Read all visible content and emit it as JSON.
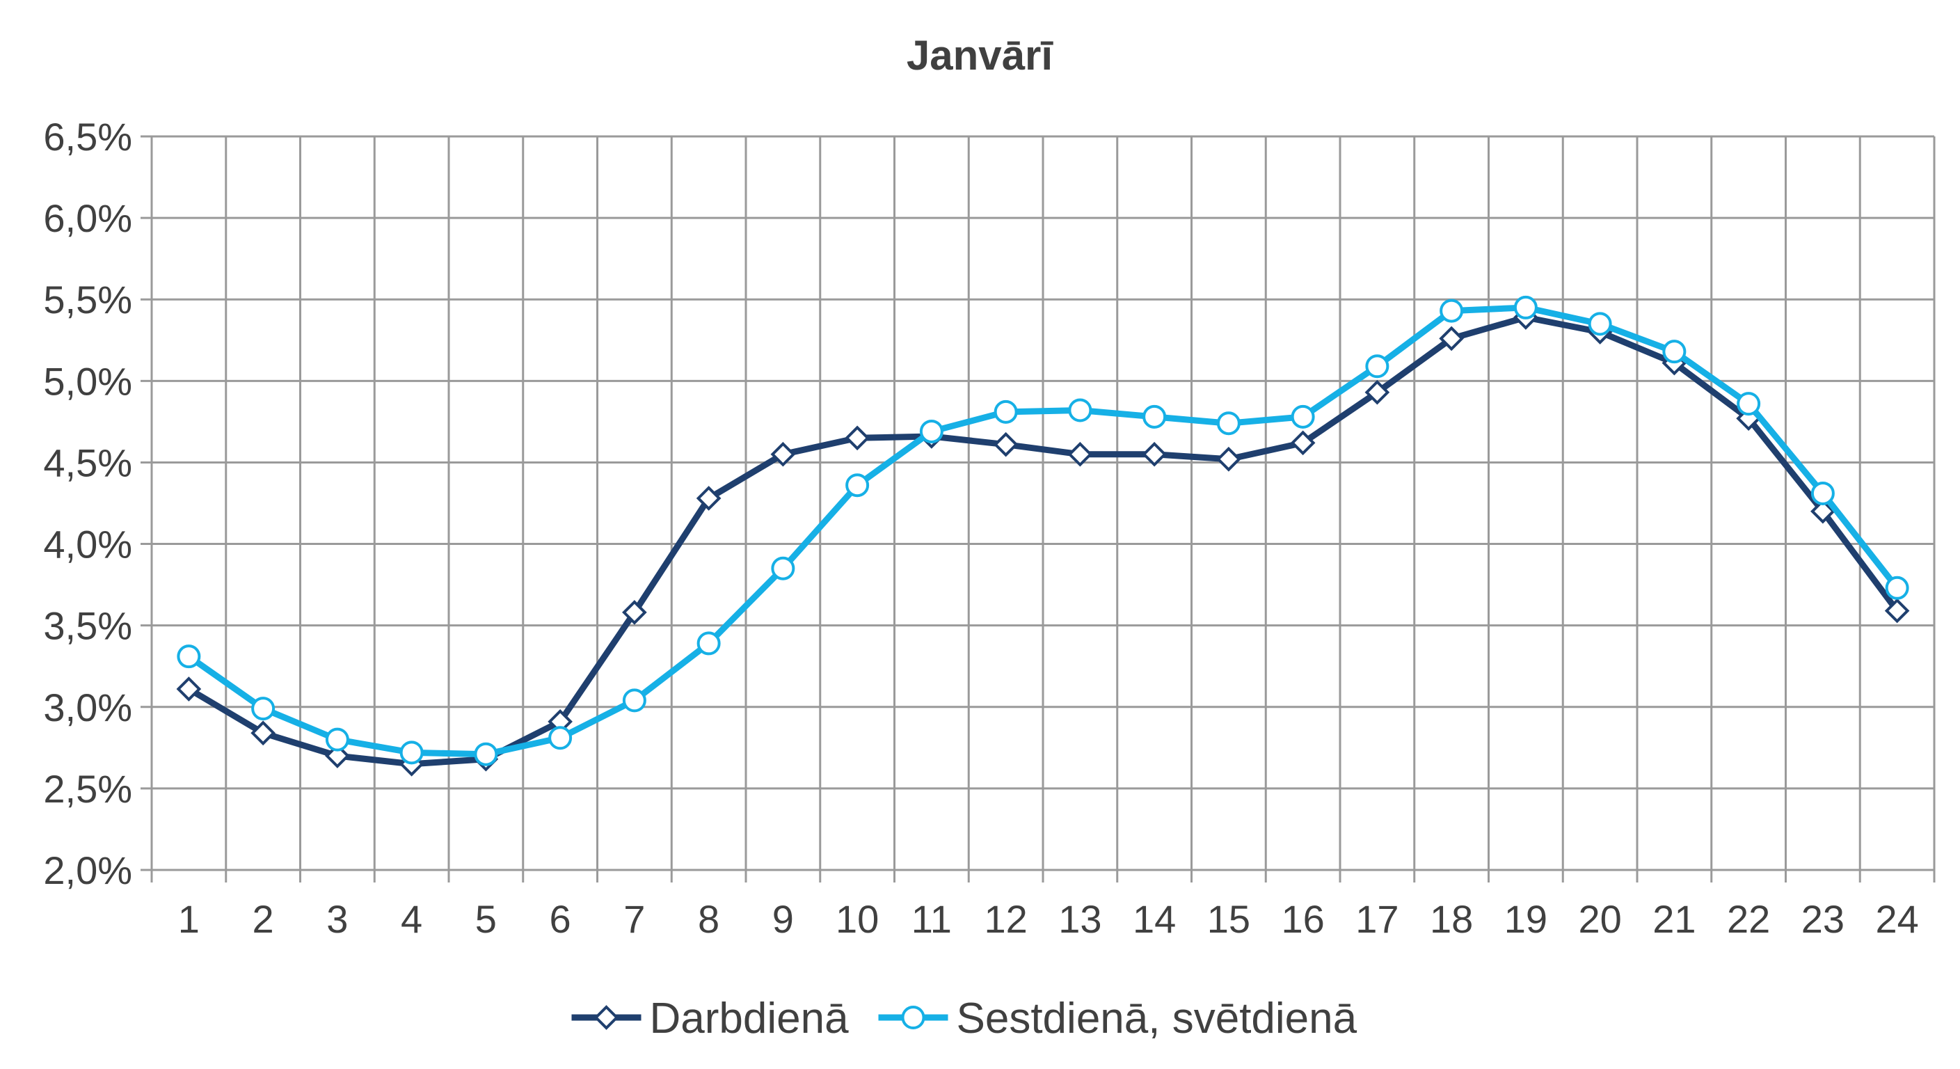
{
  "chart_data": {
    "type": "line",
    "title": "Janvārī",
    "xlabel": "",
    "ylabel": "",
    "categories": [
      "1",
      "2",
      "3",
      "4",
      "5",
      "6",
      "7",
      "8",
      "9",
      "10",
      "11",
      "12",
      "13",
      "14",
      "15",
      "16",
      "17",
      "18",
      "19",
      "20",
      "21",
      "22",
      "23",
      "24"
    ],
    "y_ticks": [
      "2,0%",
      "2,5%",
      "3,0%",
      "3,5%",
      "4,0%",
      "4,5%",
      "5,0%",
      "5,5%",
      "6,0%",
      "6,5%"
    ],
    "ylim": [
      2.0,
      6.5
    ],
    "y_step": 0.5,
    "grid": true,
    "legend_position": "bottom",
    "series": [
      {
        "name": "Darbdienā",
        "color": "#1f3f6e",
        "marker": "diamond",
        "values": [
          3.11,
          2.84,
          2.7,
          2.65,
          2.68,
          2.91,
          3.58,
          4.28,
          4.55,
          4.65,
          4.66,
          4.61,
          4.55,
          4.55,
          4.52,
          4.62,
          4.93,
          5.26,
          5.39,
          5.3,
          5.11,
          4.77,
          4.2,
          3.59
        ]
      },
      {
        "name": "Sestdienā, svētdienā",
        "color": "#16b0e6",
        "marker": "circle",
        "values": [
          3.31,
          2.99,
          2.8,
          2.72,
          2.71,
          2.81,
          3.04,
          3.39,
          3.85,
          4.36,
          4.69,
          4.81,
          4.82,
          4.78,
          4.74,
          4.78,
          5.09,
          5.43,
          5.45,
          5.35,
          5.18,
          4.86,
          4.31,
          3.73
        ]
      }
    ]
  }
}
